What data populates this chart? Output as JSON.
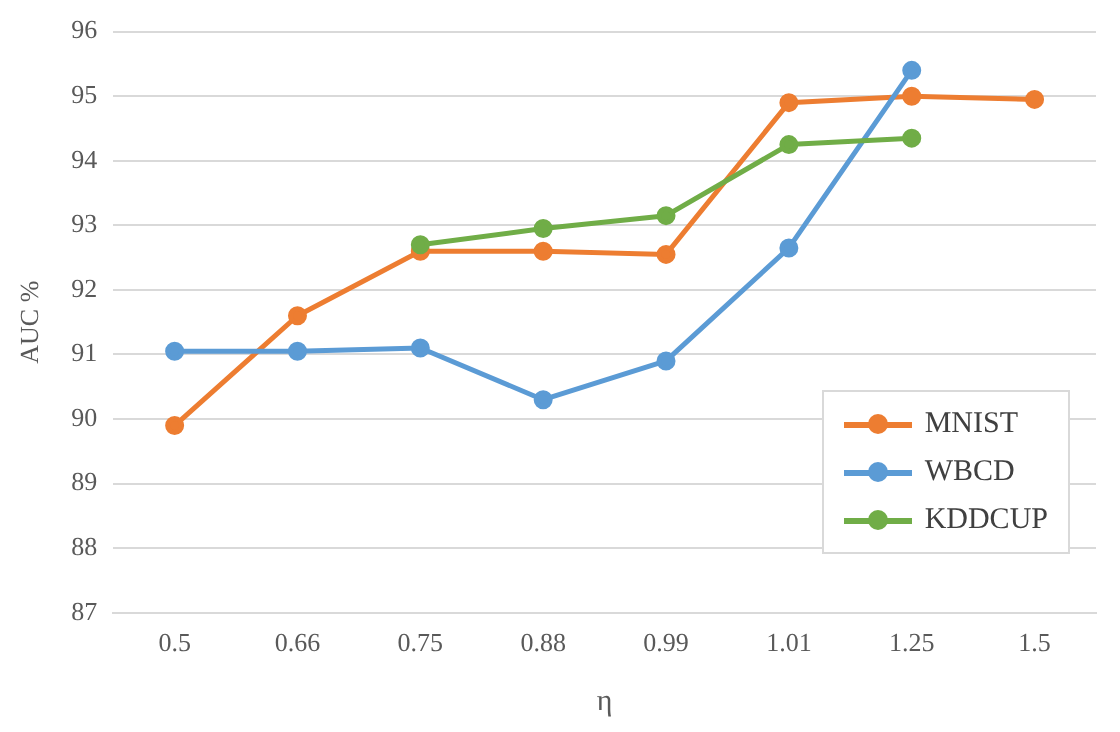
{
  "chart_data": {
    "type": "line",
    "xlabel": "η",
    "ylabel": "AUC %",
    "categories": [
      "0.5",
      "0.66",
      "0.75",
      "0.88",
      "0.99",
      "1.01",
      "1.25",
      "1.5"
    ],
    "series": [
      {
        "name": "MNIST",
        "color": "#ed7d31",
        "values": [
          89.9,
          91.6,
          92.6,
          92.6,
          92.55,
          94.9,
          95.0,
          94.95
        ]
      },
      {
        "name": "WBCD",
        "color": "#5b9bd5",
        "values": [
          91.05,
          91.05,
          91.1,
          90.3,
          90.9,
          92.65,
          95.4,
          null
        ]
      },
      {
        "name": "KDDCUP",
        "color": "#70ad47",
        "values": [
          null,
          null,
          92.7,
          92.95,
          93.15,
          94.25,
          94.35,
          null
        ]
      }
    ],
    "ylim": [
      87,
      96
    ],
    "yticks": [
      87,
      88,
      89,
      90,
      91,
      92,
      93,
      94,
      95,
      96
    ],
    "grid": "y",
    "legend": "bottom right",
    "marker": "circle",
    "line_style": "solid"
  }
}
